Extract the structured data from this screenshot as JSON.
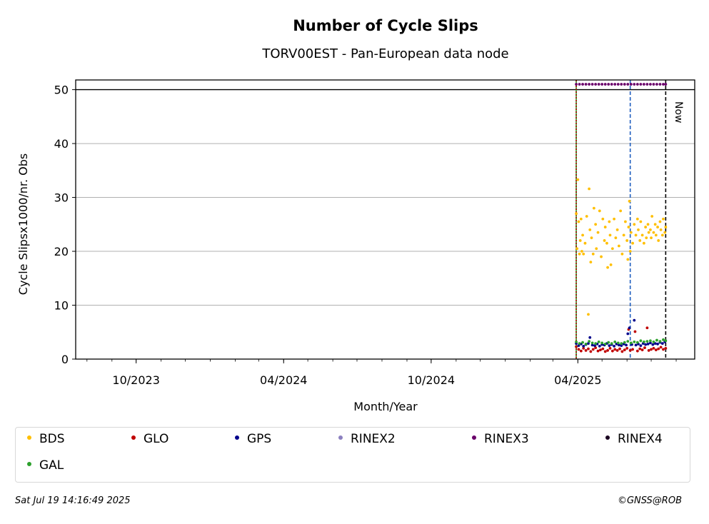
{
  "chart_data": {
    "type": "scatter",
    "title": "Number of Cycle Slips",
    "subtitle": "TORV00EST - Pan-European data node",
    "xlabel": "Month/Year",
    "ylabel": "Cycle Slipsx1000/nr. Obs",
    "ylim": [
      0,
      51.8
    ],
    "xlim": [
      "2023-07-18",
      "2025-08-24"
    ],
    "y_ticks": [
      0,
      10,
      20,
      30,
      40,
      50
    ],
    "x_ticks": [
      {
        "date": "2023-10-01",
        "label": "10/2023"
      },
      {
        "date": "2024-04-01",
        "label": "04/2024"
      },
      {
        "date": "2024-10-01",
        "label": "10/2024"
      },
      {
        "date": "2025-04-01",
        "label": "04/2025"
      }
    ],
    "grid": "horizontal",
    "reference_lines": [
      {
        "date": "2025-03-30",
        "style": "solid",
        "color": "#2ca02c"
      },
      {
        "date": "2025-03-30",
        "style": "dotted",
        "color": "#b00000"
      },
      {
        "date": "2025-06-05",
        "style": "dashed",
        "color": "#1f5fbf"
      },
      {
        "date": "2025-07-19",
        "style": "dashed",
        "color": "#000000",
        "label": "Now"
      }
    ],
    "series": [
      {
        "name": "BDS",
        "color": "#ffbf00",
        "points": [
          [
            "2025-03-30",
            27.0
          ],
          [
            "2025-03-31",
            20.5
          ],
          [
            "2025-04-01",
            33.3
          ],
          [
            "2025-04-02",
            25.5
          ],
          [
            "2025-04-03",
            19.5
          ],
          [
            "2025-04-04",
            22.0
          ],
          [
            "2025-04-05",
            26.0
          ],
          [
            "2025-04-06",
            20.0
          ],
          [
            "2025-04-07",
            23.0
          ],
          [
            "2025-04-08",
            19.5
          ],
          [
            "2025-04-10",
            21.5
          ],
          [
            "2025-04-12",
            26.5
          ],
          [
            "2025-04-14",
            8.3
          ],
          [
            "2025-04-15",
            31.6
          ],
          [
            "2025-04-16",
            24.0
          ],
          [
            "2025-04-17",
            18.0
          ],
          [
            "2025-04-18",
            22.5
          ],
          [
            "2025-04-20",
            19.5
          ],
          [
            "2025-04-21",
            28.0
          ],
          [
            "2025-04-23",
            25.0
          ],
          [
            "2025-04-24",
            20.5
          ],
          [
            "2025-04-26",
            23.5
          ],
          [
            "2025-04-28",
            27.5
          ],
          [
            "2025-04-30",
            19.0
          ],
          [
            "2025-05-02",
            26.0
          ],
          [
            "2025-05-04",
            22.0
          ],
          [
            "2025-05-05",
            24.5
          ],
          [
            "2025-05-07",
            21.5
          ],
          [
            "2025-05-08",
            17.0
          ],
          [
            "2025-05-10",
            25.5
          ],
          [
            "2025-05-11",
            23.0
          ],
          [
            "2025-05-12",
            17.5
          ],
          [
            "2025-05-14",
            20.5
          ],
          [
            "2025-05-16",
            26.0
          ],
          [
            "2025-05-18",
            22.5
          ],
          [
            "2025-05-20",
            24.0
          ],
          [
            "2025-05-22",
            21.0
          ],
          [
            "2025-05-24",
            27.5
          ],
          [
            "2025-05-26",
            19.5
          ],
          [
            "2025-05-28",
            23.0
          ],
          [
            "2025-05-30",
            25.5
          ],
          [
            "2025-06-01",
            22.0
          ],
          [
            "2025-06-02",
            18.5
          ],
          [
            "2025-06-03",
            24.5
          ],
          [
            "2025-06-04",
            29.3
          ],
          [
            "2025-06-05",
            20.0
          ],
          [
            "2025-06-06",
            23.5
          ],
          [
            "2025-06-08",
            21.5
          ],
          [
            "2025-06-10",
            25.0
          ],
          [
            "2025-06-12",
            23.0
          ],
          [
            "2025-06-14",
            26.0
          ],
          [
            "2025-06-15",
            24.0
          ],
          [
            "2025-06-17",
            22.0
          ],
          [
            "2025-06-18",
            25.5
          ],
          [
            "2025-06-20",
            23.0
          ],
          [
            "2025-06-22",
            21.5
          ],
          [
            "2025-06-24",
            24.5
          ],
          [
            "2025-06-25",
            22.5
          ],
          [
            "2025-06-27",
            25.0
          ],
          [
            "2025-06-28",
            23.5
          ],
          [
            "2025-06-30",
            24.0
          ],
          [
            "2025-07-01",
            22.5
          ],
          [
            "2025-07-02",
            26.5
          ],
          [
            "2025-07-04",
            23.5
          ],
          [
            "2025-07-06",
            25.0
          ],
          [
            "2025-07-07",
            23.0
          ],
          [
            "2025-07-09",
            24.5
          ],
          [
            "2025-07-10",
            22.0
          ],
          [
            "2025-07-12",
            25.5
          ],
          [
            "2025-07-13",
            24.0
          ],
          [
            "2025-07-15",
            23.0
          ],
          [
            "2025-07-16",
            26.0
          ],
          [
            "2025-07-18",
            23.5
          ],
          [
            "2025-07-19",
            24.5
          ]
        ]
      },
      {
        "name": "GLO",
        "color": "#c00000",
        "points": [
          [
            "2025-03-30",
            2.3
          ],
          [
            "2025-04-02",
            1.8
          ],
          [
            "2025-04-05",
            1.5
          ],
          [
            "2025-04-08",
            2.0
          ],
          [
            "2025-04-11",
            1.6
          ],
          [
            "2025-04-14",
            1.9
          ],
          [
            "2025-04-17",
            1.4
          ],
          [
            "2025-04-20",
            1.8
          ],
          [
            "2025-04-23",
            2.1
          ],
          [
            "2025-04-26",
            1.5
          ],
          [
            "2025-04-29",
            1.7
          ],
          [
            "2025-05-02",
            1.9
          ],
          [
            "2025-05-05",
            1.4
          ],
          [
            "2025-05-08",
            1.6
          ],
          [
            "2025-05-11",
            2.0
          ],
          [
            "2025-05-14",
            1.5
          ],
          [
            "2025-05-17",
            1.8
          ],
          [
            "2025-05-20",
            1.6
          ],
          [
            "2025-05-23",
            1.9
          ],
          [
            "2025-05-26",
            1.4
          ],
          [
            "2025-05-29",
            1.7
          ],
          [
            "2025-06-01",
            2.0
          ],
          [
            "2025-06-03",
            5.5
          ],
          [
            "2025-06-05",
            1.6
          ],
          [
            "2025-06-08",
            1.8
          ],
          [
            "2025-06-11",
            5.1
          ],
          [
            "2025-06-14",
            1.5
          ],
          [
            "2025-06-17",
            1.9
          ],
          [
            "2025-06-20",
            1.7
          ],
          [
            "2025-06-23",
            2.1
          ],
          [
            "2025-06-26",
            5.8
          ],
          [
            "2025-06-28",
            1.6
          ],
          [
            "2025-07-01",
            1.8
          ],
          [
            "2025-07-04",
            2.0
          ],
          [
            "2025-07-07",
            1.7
          ],
          [
            "2025-07-10",
            1.9
          ],
          [
            "2025-07-13",
            2.2
          ],
          [
            "2025-07-16",
            1.8
          ],
          [
            "2025-07-19",
            2.0
          ]
        ]
      },
      {
        "name": "GPS",
        "color": "#00008b",
        "points": [
          [
            "2025-03-30",
            2.9
          ],
          [
            "2025-04-02",
            2.5
          ],
          [
            "2025-04-05",
            2.8
          ],
          [
            "2025-04-08",
            2.4
          ],
          [
            "2025-04-11",
            2.7
          ],
          [
            "2025-04-14",
            2.9
          ],
          [
            "2025-04-16",
            4.0
          ],
          [
            "2025-04-19",
            2.6
          ],
          [
            "2025-04-22",
            2.5
          ],
          [
            "2025-04-25",
            2.8
          ],
          [
            "2025-04-28",
            2.4
          ],
          [
            "2025-05-01",
            2.7
          ],
          [
            "2025-05-04",
            2.6
          ],
          [
            "2025-05-07",
            2.9
          ],
          [
            "2025-05-10",
            2.5
          ],
          [
            "2025-05-13",
            2.7
          ],
          [
            "2025-05-16",
            2.4
          ],
          [
            "2025-05-19",
            2.8
          ],
          [
            "2025-05-22",
            2.6
          ],
          [
            "2025-05-25",
            2.5
          ],
          [
            "2025-05-28",
            2.8
          ],
          [
            "2025-05-31",
            2.6
          ],
          [
            "2025-06-02",
            4.7
          ],
          [
            "2025-06-04",
            5.8
          ],
          [
            "2025-06-07",
            2.7
          ],
          [
            "2025-06-10",
            7.2
          ],
          [
            "2025-06-12",
            2.6
          ],
          [
            "2025-06-15",
            2.8
          ],
          [
            "2025-06-18",
            2.5
          ],
          [
            "2025-06-21",
            2.9
          ],
          [
            "2025-06-24",
            2.7
          ],
          [
            "2025-06-27",
            2.8
          ],
          [
            "2025-06-30",
            3.0
          ],
          [
            "2025-07-03",
            2.7
          ],
          [
            "2025-07-06",
            2.9
          ],
          [
            "2025-07-09",
            2.8
          ],
          [
            "2025-07-12",
            3.1
          ],
          [
            "2025-07-15",
            2.9
          ],
          [
            "2025-07-18",
            3.2
          ]
        ]
      },
      {
        "name": "RINEX2",
        "color": "#8c80c0",
        "points": []
      },
      {
        "name": "RINEX3",
        "color": "#6a006a",
        "points": [
          [
            "2025-03-30",
            51
          ],
          [
            "2025-04-03",
            51
          ],
          [
            "2025-04-07",
            51
          ],
          [
            "2025-04-11",
            51
          ],
          [
            "2025-04-15",
            51
          ],
          [
            "2025-04-19",
            51
          ],
          [
            "2025-04-23",
            51
          ],
          [
            "2025-04-27",
            51
          ],
          [
            "2025-05-01",
            51
          ],
          [
            "2025-05-05",
            51
          ],
          [
            "2025-05-09",
            51
          ],
          [
            "2025-05-13",
            51
          ],
          [
            "2025-05-17",
            51
          ],
          [
            "2025-05-21",
            51
          ],
          [
            "2025-05-25",
            51
          ],
          [
            "2025-05-29",
            51
          ],
          [
            "2025-06-02",
            51
          ],
          [
            "2025-06-06",
            51
          ],
          [
            "2025-06-10",
            51
          ],
          [
            "2025-06-14",
            51
          ],
          [
            "2025-06-18",
            51
          ],
          [
            "2025-06-22",
            51
          ],
          [
            "2025-06-26",
            51
          ],
          [
            "2025-06-30",
            51
          ],
          [
            "2025-07-04",
            51
          ],
          [
            "2025-07-08",
            51
          ],
          [
            "2025-07-12",
            51
          ],
          [
            "2025-07-16",
            51
          ],
          [
            "2025-07-19",
            51
          ]
        ]
      },
      {
        "name": "RINEX4",
        "color": "#1a0020",
        "points": []
      },
      {
        "name": "GAL",
        "color": "#2ca02c",
        "points": [
          [
            "2025-03-30",
            3.2
          ],
          [
            "2025-04-03",
            2.9
          ],
          [
            "2025-04-07",
            3.1
          ],
          [
            "2025-04-11",
            2.8
          ],
          [
            "2025-04-15",
            3.3
          ],
          [
            "2025-04-19",
            3.0
          ],
          [
            "2025-04-23",
            2.9
          ],
          [
            "2025-04-27",
            3.2
          ],
          [
            "2025-05-01",
            3.0
          ],
          [
            "2025-05-05",
            2.8
          ],
          [
            "2025-05-09",
            3.1
          ],
          [
            "2025-05-13",
            2.9
          ],
          [
            "2025-05-17",
            3.2
          ],
          [
            "2025-05-21",
            3.0
          ],
          [
            "2025-05-25",
            2.9
          ],
          [
            "2025-05-29",
            3.1
          ],
          [
            "2025-06-02",
            3.3
          ],
          [
            "2025-06-06",
            3.0
          ],
          [
            "2025-06-10",
            3.2
          ],
          [
            "2025-06-14",
            3.1
          ],
          [
            "2025-06-18",
            3.4
          ],
          [
            "2025-06-22",
            3.2
          ],
          [
            "2025-06-26",
            3.3
          ],
          [
            "2025-06-30",
            3.4
          ],
          [
            "2025-07-04",
            3.2
          ],
          [
            "2025-07-08",
            3.5
          ],
          [
            "2025-07-12",
            3.3
          ],
          [
            "2025-07-16",
            3.6
          ],
          [
            "2025-07-19",
            3.4
          ]
        ]
      }
    ]
  },
  "legend": [
    {
      "label": "BDS",
      "color": "#ffbf00"
    },
    {
      "label": "GLO",
      "color": "#c00000"
    },
    {
      "label": "GPS",
      "color": "#00008b"
    },
    {
      "label": "RINEX2",
      "color": "#8c80c0"
    },
    {
      "label": "RINEX3",
      "color": "#6a006a"
    },
    {
      "label": "RINEX4",
      "color": "#1a0020"
    },
    {
      "label": "GAL",
      "color": "#2ca02c"
    }
  ],
  "footer": {
    "timestamp": "Sat Jul 19 14:16:49 2025",
    "credit": "©GNSS@ROB"
  }
}
